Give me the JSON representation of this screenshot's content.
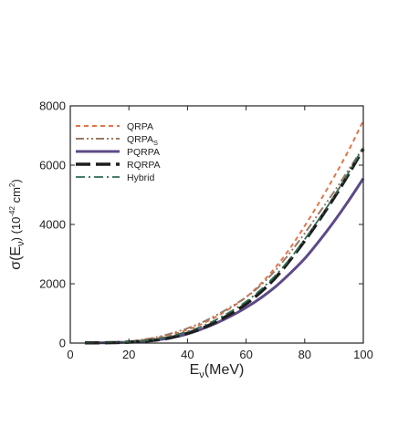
{
  "chart_data": {
    "type": "line",
    "title": "",
    "xlabel": {
      "main": "E",
      "sub": "ν",
      "rest": "(MeV)"
    },
    "ylabel": {
      "main": "σ(E",
      "sub": "ν",
      "mid": ")  (10",
      "sup1": "-42",
      "rest": " cm",
      "sup2": "2",
      "end": ")"
    },
    "xlim": [
      0,
      100
    ],
    "ylim": [
      0,
      8000
    ],
    "xticks": [
      0,
      20,
      40,
      60,
      80,
      100
    ],
    "yticks": [
      0,
      2000,
      4000,
      6000,
      8000
    ],
    "grid": false,
    "legend_position": "top-left",
    "x": [
      5,
      10,
      15,
      20,
      25,
      30,
      35,
      40,
      45,
      50,
      55,
      60,
      65,
      70,
      75,
      80,
      85,
      90,
      95,
      100
    ],
    "series": [
      {
        "name": "QRPA",
        "name_sub": "",
        "color": "#e2744a",
        "dash": "short-dash",
        "width": 2,
        "values": [
          10,
          15,
          30,
          60,
          110,
          190,
          300,
          450,
          650,
          900,
          1200,
          1550,
          2000,
          2550,
          3200,
          3950,
          4750,
          5600,
          6500,
          7500
        ]
      },
      {
        "name": "QRPA",
        "name_sub": "S",
        "color": "#9a7a66",
        "dash": "dash-dot-dot",
        "width": 2,
        "values": [
          10,
          15,
          30,
          60,
          120,
          210,
          340,
          500,
          700,
          950,
          1230,
          1550,
          1950,
          2450,
          3050,
          3700,
          4400,
          5100,
          5850,
          6600
        ]
      },
      {
        "name": "PQRPA",
        "name_sub": "",
        "color": "#5d4a86",
        "dash": "solid",
        "width": 3,
        "values": [
          5,
          8,
          15,
          30,
          60,
          110,
          190,
          310,
          480,
          680,
          920,
          1200,
          1520,
          1900,
          2350,
          2850,
          3450,
          4100,
          4800,
          5550
        ]
      },
      {
        "name": "RQRPA",
        "name_sub": "",
        "color": "#1e1e1e",
        "dash": "long-dash",
        "width": 3.5,
        "values": [
          5,
          8,
          15,
          30,
          60,
          110,
          200,
          330,
          500,
          730,
          1000,
          1320,
          1720,
          2200,
          2800,
          3450,
          4150,
          4900,
          5700,
          6550
        ]
      },
      {
        "name": "Hybrid",
        "name_sub": "",
        "color": "#2f6b52",
        "dash": "dash-dot",
        "width": 1.8,
        "values": [
          5,
          8,
          18,
          40,
          80,
          150,
          250,
          390,
          570,
          800,
          1080,
          1400,
          1800,
          2280,
          2850,
          3500,
          4200,
          4950,
          5750,
          6600
        ]
      }
    ]
  }
}
